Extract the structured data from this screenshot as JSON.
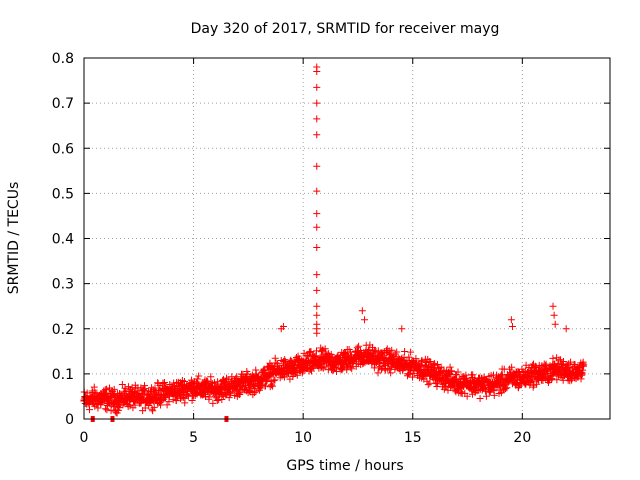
{
  "chart_data": {
    "type": "scatter",
    "title": "Day 320 of 2017, SRMTID for receiver mayg",
    "xlabel": "GPS time / hours",
    "ylabel": "SRMTID / TECUs",
    "xlim": [
      0,
      24
    ],
    "ylim": [
      0,
      0.8
    ],
    "xticks": [
      0,
      5,
      10,
      15,
      20
    ],
    "yticks": [
      0,
      0.1,
      0.2,
      0.3,
      0.4,
      0.5,
      0.6,
      0.7,
      0.8
    ],
    "grid": true,
    "marker": "+",
    "series_color": "#ff0000",
    "baseline_points": {
      "x": [
        0.0,
        0.5,
        1.0,
        1.5,
        2.0,
        2.5,
        3.0,
        3.5,
        4.0,
        4.5,
        5.0,
        5.5,
        6.0,
        6.5,
        7.0,
        7.5,
        8.0,
        8.5,
        9.0,
        9.5,
        10.0,
        10.5,
        11.0,
        11.5,
        12.0,
        12.5,
        13.0,
        13.5,
        14.0,
        14.5,
        15.0,
        15.5,
        16.0,
        16.5,
        17.0,
        17.5,
        18.0,
        18.5,
        19.0,
        19.5,
        20.0,
        20.5,
        21.0,
        21.5,
        22.0,
        22.5,
        22.8
      ],
      "y": [
        0.04,
        0.045,
        0.045,
        0.04,
        0.05,
        0.045,
        0.05,
        0.055,
        0.06,
        0.065,
        0.07,
        0.065,
        0.065,
        0.07,
        0.075,
        0.08,
        0.085,
        0.1,
        0.11,
        0.11,
        0.12,
        0.125,
        0.13,
        0.125,
        0.13,
        0.14,
        0.14,
        0.13,
        0.13,
        0.12,
        0.12,
        0.11,
        0.1,
        0.09,
        0.08,
        0.08,
        0.075,
        0.075,
        0.08,
        0.09,
        0.09,
        0.1,
        0.1,
        0.11,
        0.11,
        0.1,
        0.12
      ]
    },
    "spread": 0.035,
    "spike_points": {
      "x": [
        10.62,
        10.62,
        10.62,
        10.62,
        10.62,
        10.62,
        10.62,
        10.62,
        10.62,
        10.62,
        10.62,
        10.62,
        10.62,
        10.62,
        10.62,
        10.62,
        10.62,
        10.62
      ],
      "y": [
        0.78,
        0.77,
        0.735,
        0.7,
        0.665,
        0.63,
        0.56,
        0.505,
        0.455,
        0.425,
        0.38,
        0.32,
        0.285,
        0.25,
        0.23,
        0.21,
        0.2,
        0.19
      ]
    },
    "peak_points": {
      "x": [
        9.0,
        9.1,
        12.7,
        12.8,
        14.5,
        19.5,
        19.55,
        21.4,
        21.45,
        21.5,
        22.0
      ],
      "y": [
        0.2,
        0.205,
        0.24,
        0.22,
        0.2,
        0.22,
        0.205,
        0.25,
        0.23,
        0.21,
        0.2
      ]
    },
    "zero_points": {
      "x": [
        0.4,
        1.3,
        6.5
      ],
      "y": [
        0,
        0,
        0
      ]
    }
  }
}
